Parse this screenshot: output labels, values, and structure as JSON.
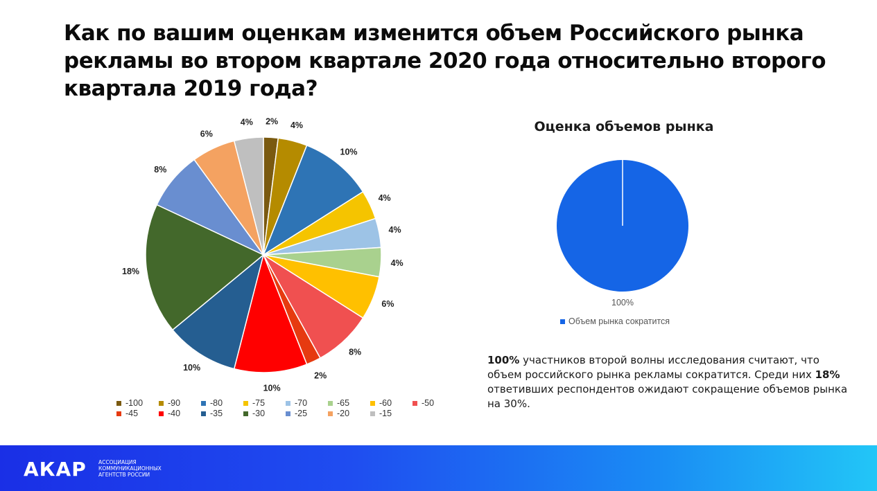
{
  "title": "Как по вашим оценкам изменится объем Российского рынка рекламы во втором квартале 2020 года относительно второго квартала 2019 года?",
  "chart_data": [
    {
      "type": "pie",
      "title": "",
      "slices": [
        {
          "category": "-100",
          "value": 2,
          "label": "2%",
          "color": "#7a5a10"
        },
        {
          "category": "-90",
          "value": 4,
          "label": "4%",
          "color": "#b58b00"
        },
        {
          "category": "-80",
          "value": 10,
          "label": "10%",
          "color": "#2e74b5"
        },
        {
          "category": "-75",
          "value": 4,
          "label": "4%",
          "color": "#f5c400"
        },
        {
          "category": "-70",
          "value": 4,
          "label": "4%",
          "color": "#9dc3e6"
        },
        {
          "category": "-65",
          "value": 4,
          "label": "4%",
          "color": "#a9d18e"
        },
        {
          "category": "-60",
          "value": 6,
          "label": "6%",
          "color": "#ffc000"
        },
        {
          "category": "-50",
          "value": 8,
          "label": "8%",
          "color": "#f05050"
        },
        {
          "category": "-45",
          "value": 2,
          "label": "2%",
          "color": "#e63a10"
        },
        {
          "category": "-40",
          "value": 10,
          "label": "10%",
          "color": "#ff0000"
        },
        {
          "category": "-35",
          "value": 10,
          "label": "10%",
          "color": "#255e91"
        },
        {
          "category": "-30",
          "value": 18,
          "label": "18%",
          "color": "#43682b"
        },
        {
          "category": "-25",
          "value": 8,
          "label": "8%",
          "color": "#698ed0"
        },
        {
          "category": "-20",
          "value": 6,
          "label": "6%",
          "color": "#f4a261"
        },
        {
          "category": "-15",
          "value": 4,
          "label": "4%",
          "color": "#bfbfbf"
        }
      ],
      "legend_position": "bottom"
    },
    {
      "type": "pie",
      "title": "Оценка объемов рынка",
      "slices": [
        {
          "category": "Объем рынка сократится",
          "value": 100,
          "label": "100%",
          "color": "#1565e6"
        }
      ],
      "legend_position": "bottom"
    }
  ],
  "note": {
    "bold1": "100%",
    "text1": " участников второй волны исследования считают, что объем российского рынка рекламы сократится. Среди них ",
    "bold2": "18%",
    "text2": " ответивших респондентов ожидают сокращение объемов рынка на 30%."
  },
  "footer": {
    "logo": "АКАР",
    "subtitle_lines": [
      "Ассоциация",
      "коммуникационных",
      "агентств России"
    ]
  }
}
